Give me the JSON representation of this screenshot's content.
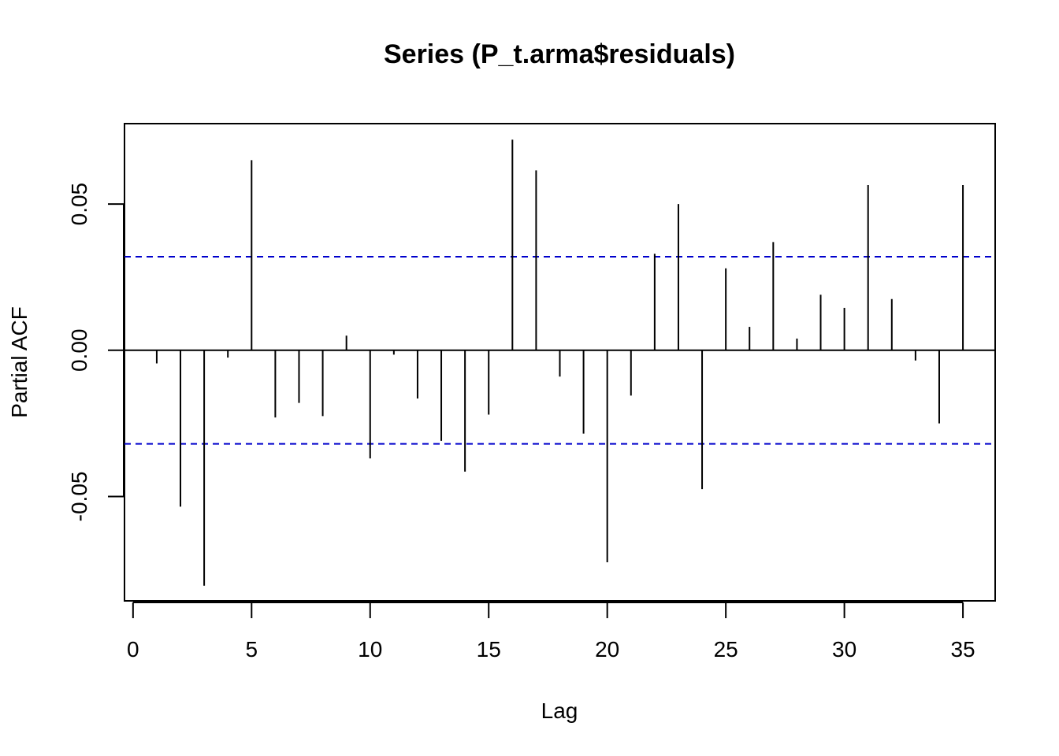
{
  "chart_data": {
    "type": "bar",
    "title": "Series  (P_t.arma$residuals)",
    "xlabel": "Lag",
    "ylabel": "Partial ACF",
    "xlim": [
      -0.36,
      36.36
    ],
    "ylim": [
      -0.0857,
      0.0775
    ],
    "x_ticks": [
      0,
      5,
      10,
      15,
      20,
      25,
      30,
      35
    ],
    "x_tick_labels": [
      "0",
      "5",
      "10",
      "15",
      "20",
      "25",
      "30",
      "35"
    ],
    "y_ticks": [
      -0.05,
      0.0,
      0.05
    ],
    "y_tick_labels": [
      "-0.05",
      "0.00",
      "0.05"
    ],
    "confidence_bound": 0.032,
    "grid": false,
    "colors": {
      "bars": "#000000",
      "ci": "#0000cc",
      "zero_line": "#000000"
    },
    "series": [
      {
        "x": [
          1,
          2,
          3,
          4,
          5,
          6,
          7,
          8,
          9,
          10,
          11,
          12,
          13,
          14,
          15,
          16,
          17,
          18,
          19,
          20,
          21,
          22,
          23,
          24,
          25,
          26,
          27,
          28,
          29,
          30,
          31,
          32,
          33,
          34,
          35
        ],
        "values": [
          -0.0045,
          -0.0535,
          -0.0805,
          -0.0025,
          0.065,
          -0.023,
          -0.018,
          -0.0225,
          0.005,
          -0.037,
          -0.0015,
          -0.0165,
          -0.031,
          -0.0415,
          -0.022,
          0.072,
          0.0615,
          -0.009,
          -0.0285,
          -0.0725,
          -0.0155,
          0.033,
          0.05,
          -0.0475,
          0.028,
          0.008,
          0.037,
          0.004,
          0.019,
          0.0145,
          0.0565,
          0.0175,
          -0.0035,
          -0.025,
          0.0565
        ]
      }
    ]
  }
}
